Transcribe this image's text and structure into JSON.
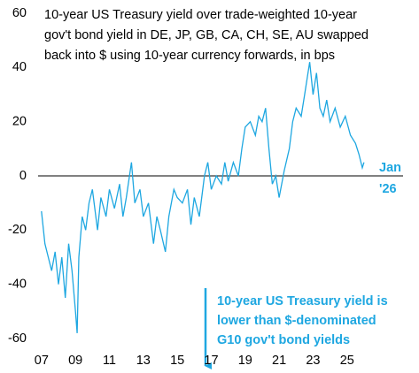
{
  "chart_data": {
    "type": "line",
    "title": [
      "10-year US Treasury yield over trade-weighted 10-year",
      "gov't bond yield in DE, JP, GB, CA, CH, SE, AU swapped",
      "back into $ using 10-year currency forwards, in bps"
    ],
    "end_label": [
      "Jan",
      "'26"
    ],
    "annotation": [
      "10-year US Treasury yield is",
      "lower than $-denominated",
      "G10 gov't bond yields"
    ],
    "x": [
      2007.0,
      2007.2,
      2007.4,
      2007.6,
      2007.8,
      2008.0,
      2008.2,
      2008.4,
      2008.6,
      2008.8,
      2009.0,
      2009.1,
      2009.2,
      2009.4,
      2009.6,
      2009.8,
      2010.0,
      2010.3,
      2010.5,
      2010.8,
      2011.0,
      2011.3,
      2011.6,
      2011.8,
      2012.0,
      2012.3,
      2012.5,
      2012.8,
      2013.0,
      2013.3,
      2013.6,
      2013.8,
      2014.0,
      2014.3,
      2014.5,
      2014.8,
      2015.0,
      2015.3,
      2015.6,
      2015.8,
      2016.0,
      2016.3,
      2016.6,
      2016.8,
      2017.0,
      2017.3,
      2017.6,
      2017.8,
      2018.0,
      2018.3,
      2018.6,
      2018.8,
      2019.0,
      2019.3,
      2019.6,
      2019.8,
      2020.0,
      2020.2,
      2020.4,
      2020.6,
      2020.8,
      2021.0,
      2021.3,
      2021.6,
      2021.8,
      2022.0,
      2022.3,
      2022.5,
      2022.8,
      2023.0,
      2023.2,
      2023.4,
      2023.6,
      2023.8,
      2024.0,
      2024.3,
      2024.6,
      2024.9,
      2025.2,
      2025.5,
      2025.7,
      2025.9,
      2026.0
    ],
    "series": [
      {
        "name": "spread",
        "color": "#1ea7e1",
        "values": [
          -13,
          -25,
          -30,
          -35,
          -28,
          -40,
          -30,
          -45,
          -25,
          -35,
          -50,
          -58,
          -30,
          -15,
          -20,
          -10,
          -5,
          -20,
          -8,
          -15,
          -5,
          -12,
          -3,
          -15,
          -8,
          5,
          -10,
          -5,
          -15,
          -10,
          -25,
          -15,
          -20,
          -28,
          -15,
          -5,
          -8,
          -10,
          -5,
          -18,
          -8,
          -15,
          0,
          5,
          -5,
          0,
          -3,
          5,
          -2,
          5,
          0,
          10,
          18,
          20,
          15,
          22,
          20,
          25,
          10,
          -3,
          0,
          -8,
          2,
          10,
          20,
          25,
          22,
          30,
          42,
          30,
          38,
          25,
          22,
          28,
          20,
          25,
          18,
          22,
          15,
          12,
          8,
          3,
          5
        ]
      }
    ],
    "xlim": [
      2006.8,
      2028.3
    ],
    "xticks": [
      {
        "value": 2007,
        "label": "07"
      },
      {
        "value": 2009,
        "label": "09"
      },
      {
        "value": 2011,
        "label": "11"
      },
      {
        "value": 2013,
        "label": "13"
      },
      {
        "value": 2015,
        "label": "15"
      },
      {
        "value": 2017,
        "label": "17"
      },
      {
        "value": 2019,
        "label": "19"
      },
      {
        "value": 2021,
        "label": "21"
      },
      {
        "value": 2023,
        "label": "23"
      },
      {
        "value": 2025,
        "label": "25"
      }
    ],
    "ylim": [
      -60,
      60
    ],
    "yticks": [
      -60,
      -40,
      -20,
      0,
      20,
      40,
      60
    ]
  }
}
